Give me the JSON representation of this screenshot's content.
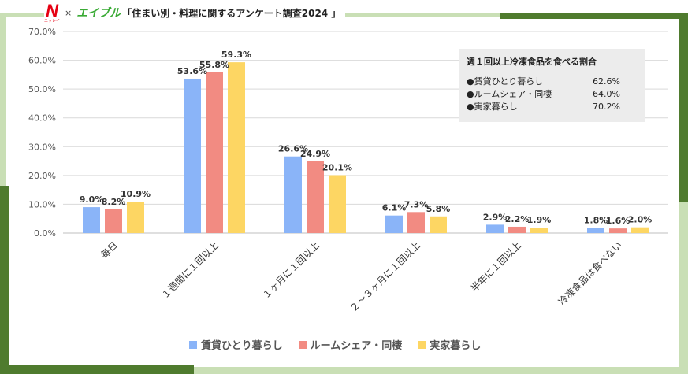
{
  "header": {
    "logo_n": "N",
    "logo_n_caption": "ニッレイ",
    "times": "×",
    "logo_eible": "エイブル",
    "title": "「住まい別・料理に関するアンケート調査2024 」"
  },
  "colors": {
    "series1": "#8ab4f8",
    "series2": "#f28b82",
    "series3": "#fdd663",
    "frame_light": "#c9dfb5",
    "frame_dark": "#4f7b2e"
  },
  "info_box": {
    "title": "週１回以上冷凍食品を食べる割合",
    "rows": [
      {
        "label": "●賃貸ひとり暮らし",
        "value": "62.6%"
      },
      {
        "label": "●ルームシェア・同棲",
        "value": "64.0%"
      },
      {
        "label": "●実家暮らし",
        "value": "70.2%"
      }
    ]
  },
  "chart_data": {
    "type": "bar",
    "categories": [
      "毎日",
      "１週間に１回以上",
      "１ヶ月に１回以上",
      "２～３ヶ月に１回以上",
      "半年に１回以上",
      "冷凍食品は食べない"
    ],
    "series": [
      {
        "name": "賃貸ひとり暮らし",
        "values": [
          9.0,
          53.6,
          26.6,
          6.1,
          2.9,
          1.8
        ]
      },
      {
        "name": "ルームシェア・同棲",
        "values": [
          8.2,
          55.8,
          24.9,
          7.3,
          2.2,
          1.6
        ]
      },
      {
        "name": "実家暮らし",
        "values": [
          10.9,
          59.3,
          20.1,
          5.8,
          1.9,
          2.0
        ]
      }
    ],
    "ylim": [
      0,
      70
    ],
    "yticks": [
      "0.0%",
      "10.0%",
      "20.0%",
      "30.0%",
      "40.0%",
      "50.0%",
      "60.0%",
      "70.0%"
    ],
    "value_suffix": "%",
    "grid": true,
    "legend": "bottom"
  }
}
